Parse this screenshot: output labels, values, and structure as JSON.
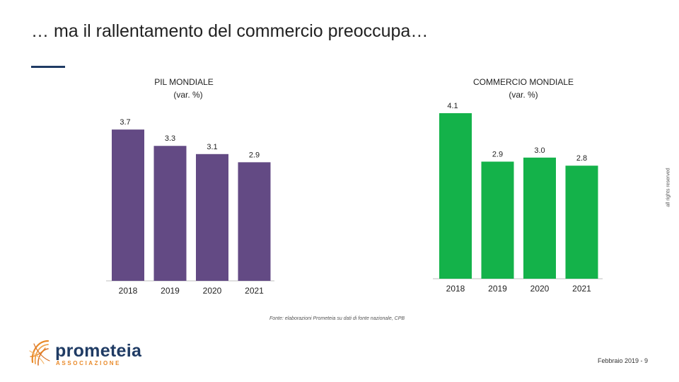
{
  "page": {
    "title": "… ma il rallentamento del commercio preoccupa…",
    "vertical_note": "all rights reserved",
    "source": "Fonte: elaborazioni Prometeia su dati di fonte nazionale, CPB",
    "footer": "Febbraio 2019 - 9"
  },
  "logo": {
    "name": "prometeia",
    "subtitle": "ASSOCIAZIONE"
  },
  "colors": {
    "pil": "#634a84",
    "commercio": "#14b24a",
    "axis": "#bfbfbf",
    "title_underline": "#1f3b64"
  },
  "chart_data": [
    {
      "type": "bar",
      "title": "PIL MONDIALE",
      "subtitle": "(var. %)",
      "categories": [
        "2018",
        "2019",
        "2020",
        "2021"
      ],
      "values": [
        3.7,
        3.3,
        3.1,
        2.9
      ],
      "labels": [
        "3.7",
        "3.3",
        "3.1",
        "2.9"
      ],
      "ylim": [
        0,
        4.1
      ],
      "color": "#634a84"
    },
    {
      "type": "bar",
      "title": "COMMERCIO MONDIALE",
      "subtitle": "(var. %)",
      "categories": [
        "2018",
        "2019",
        "2020",
        "2021"
      ],
      "values": [
        4.1,
        2.9,
        3.0,
        2.8
      ],
      "labels": [
        "4.1",
        "2.9",
        "3.0",
        "2.8"
      ],
      "ylim": [
        0,
        4.1
      ],
      "color": "#14b24a"
    }
  ]
}
